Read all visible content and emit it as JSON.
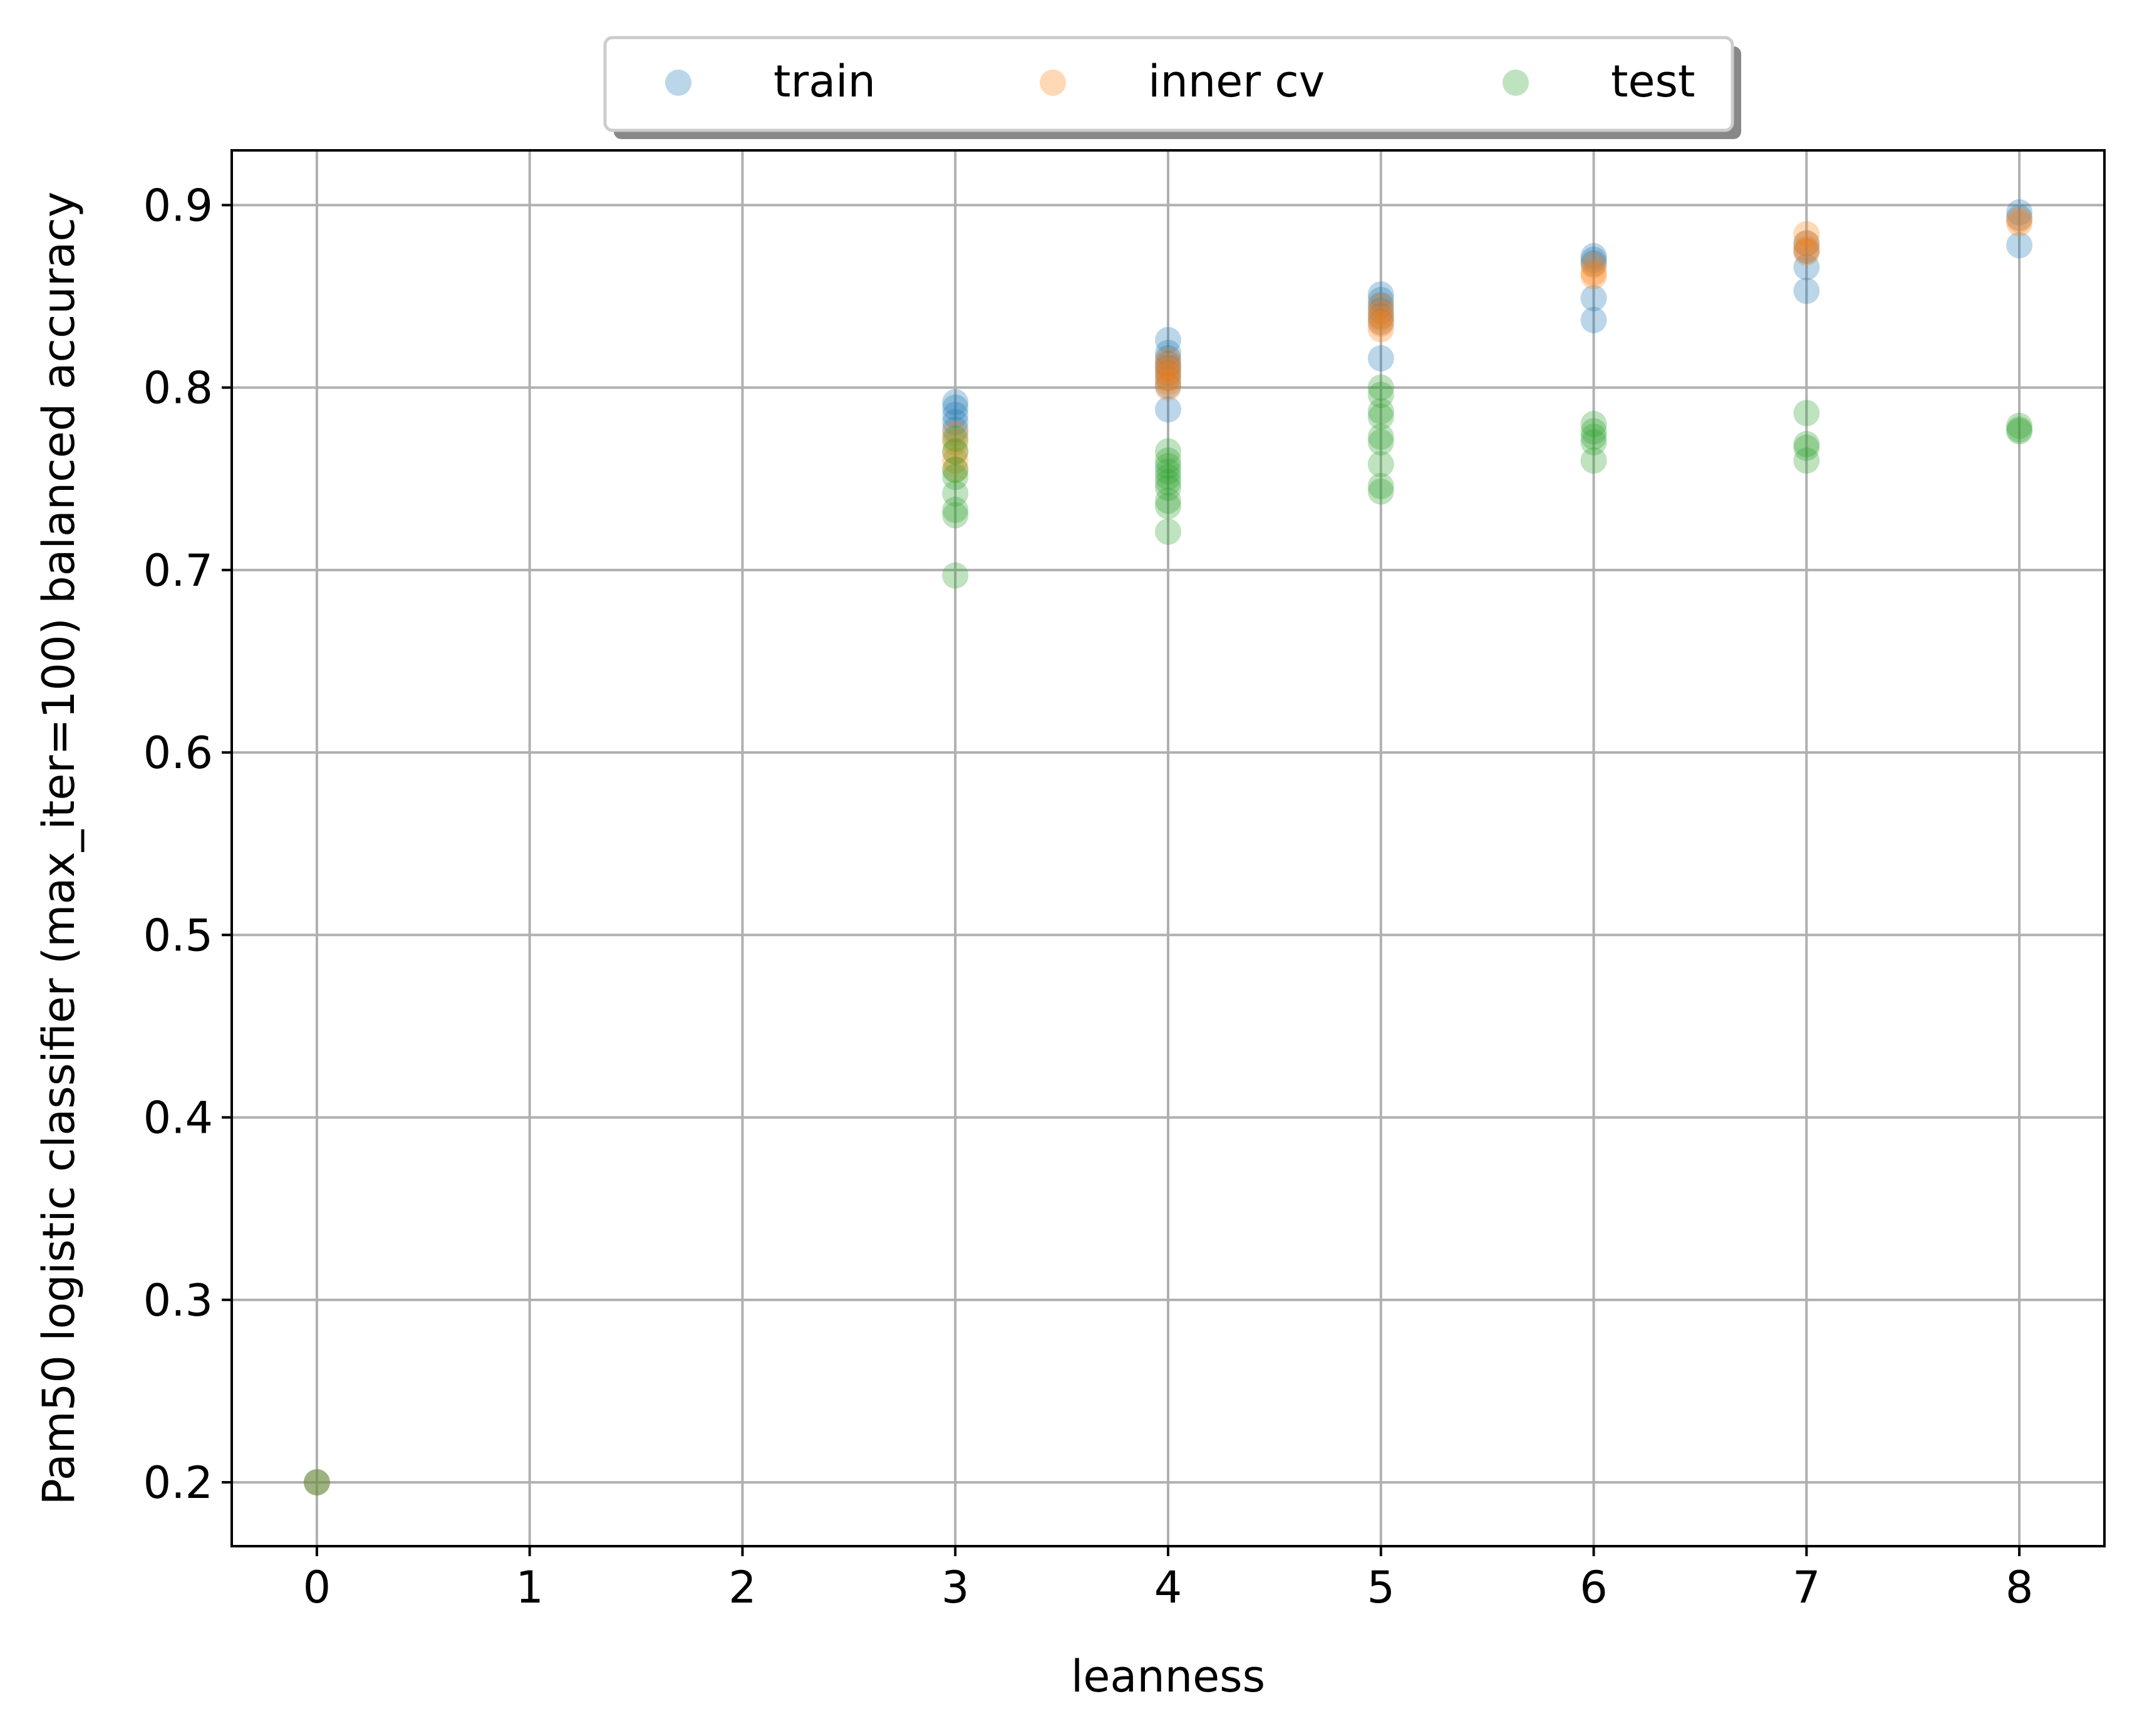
{
  "chart_data": {
    "type": "scatter",
    "xlabel": "leanness",
    "ylabel": "Pam50 logistic classifier (max_iter=100) balanced accuracy",
    "xlim": [
      -0.4,
      8.4
    ],
    "ylim": [
      0.165,
      0.93
    ],
    "xticks": [
      0,
      1,
      2,
      3,
      4,
      5,
      6,
      7,
      8
    ],
    "xtick_labels": [
      "0",
      "1",
      "2",
      "3",
      "4",
      "5",
      "6",
      "7",
      "8"
    ],
    "yticks": [
      0.2,
      0.3,
      0.4,
      0.5,
      0.6,
      0.7,
      0.8,
      0.9
    ],
    "ytick_labels": [
      "0.2",
      "0.3",
      "0.4",
      "0.5",
      "0.6",
      "0.7",
      "0.8",
      "0.9"
    ],
    "grid": true,
    "legend": {
      "placement": "top-center, above plot",
      "columns": 3,
      "shadow": true
    },
    "series": [
      {
        "name": "train",
        "color": "#1f77b4",
        "alpha": 0.3,
        "points": [
          [
            0,
            0.2
          ],
          [
            3,
            0.792
          ],
          [
            3,
            0.789
          ],
          [
            3,
            0.785
          ],
          [
            3,
            0.781
          ],
          [
            3,
            0.777
          ],
          [
            4,
            0.826
          ],
          [
            4,
            0.819
          ],
          [
            4,
            0.816
          ],
          [
            4,
            0.813
          ],
          [
            4,
            0.811
          ],
          [
            4,
            0.808
          ],
          [
            4,
            0.805
          ],
          [
            4,
            0.801
          ],
          [
            4,
            0.788
          ],
          [
            5,
            0.851
          ],
          [
            5,
            0.848
          ],
          [
            5,
            0.845
          ],
          [
            5,
            0.842
          ],
          [
            5,
            0.839
          ],
          [
            5,
            0.836
          ],
          [
            5,
            0.816
          ],
          [
            6,
            0.872
          ],
          [
            6,
            0.87
          ],
          [
            6,
            0.868
          ],
          [
            6,
            0.849
          ],
          [
            6,
            0.837
          ],
          [
            7,
            0.879
          ],
          [
            7,
            0.875
          ],
          [
            7,
            0.866
          ],
          [
            7,
            0.853
          ],
          [
            8,
            0.896
          ],
          [
            8,
            0.893
          ],
          [
            8,
            0.878
          ]
        ]
      },
      {
        "name": "inner cv",
        "color": "#ff7f0e",
        "alpha": 0.3,
        "points": [
          [
            0,
            0.2
          ],
          [
            3,
            0.775
          ],
          [
            3,
            0.77
          ],
          [
            3,
            0.765
          ],
          [
            3,
            0.76
          ],
          [
            3,
            0.755
          ],
          [
            4,
            0.815
          ],
          [
            4,
            0.812
          ],
          [
            4,
            0.809
          ],
          [
            4,
            0.806
          ],
          [
            4,
            0.803
          ],
          [
            4,
            0.8
          ],
          [
            5,
            0.845
          ],
          [
            5,
            0.841
          ],
          [
            5,
            0.838
          ],
          [
            5,
            0.835
          ],
          [
            5,
            0.832
          ],
          [
            6,
            0.867
          ],
          [
            6,
            0.863
          ],
          [
            6,
            0.861
          ],
          [
            7,
            0.884
          ],
          [
            7,
            0.879
          ],
          [
            7,
            0.876
          ],
          [
            7,
            0.874
          ],
          [
            8,
            0.892
          ],
          [
            8,
            0.89
          ]
        ]
      },
      {
        "name": "test",
        "color": "#2ca02c",
        "alpha": 0.3,
        "points": [
          [
            0,
            0.2
          ],
          [
            3,
            0.772
          ],
          [
            3,
            0.765
          ],
          [
            3,
            0.755
          ],
          [
            3,
            0.751
          ],
          [
            3,
            0.742
          ],
          [
            3,
            0.733
          ],
          [
            3,
            0.73
          ],
          [
            3,
            0.697
          ],
          [
            4,
            0.765
          ],
          [
            4,
            0.76
          ],
          [
            4,
            0.757
          ],
          [
            4,
            0.754
          ],
          [
            4,
            0.751
          ],
          [
            4,
            0.748
          ],
          [
            4,
            0.745
          ],
          [
            4,
            0.738
          ],
          [
            4,
            0.735
          ],
          [
            4,
            0.721
          ],
          [
            5,
            0.8
          ],
          [
            5,
            0.796
          ],
          [
            5,
            0.787
          ],
          [
            5,
            0.784
          ],
          [
            5,
            0.773
          ],
          [
            5,
            0.77
          ],
          [
            5,
            0.758
          ],
          [
            5,
            0.746
          ],
          [
            5,
            0.743
          ],
          [
            6,
            0.78
          ],
          [
            6,
            0.776
          ],
          [
            6,
            0.773
          ],
          [
            6,
            0.77
          ],
          [
            6,
            0.76
          ],
          [
            7,
            0.786
          ],
          [
            7,
            0.769
          ],
          [
            7,
            0.767
          ],
          [
            7,
            0.76
          ],
          [
            8,
            0.779
          ],
          [
            8,
            0.777
          ],
          [
            8,
            0.776
          ]
        ]
      }
    ]
  }
}
